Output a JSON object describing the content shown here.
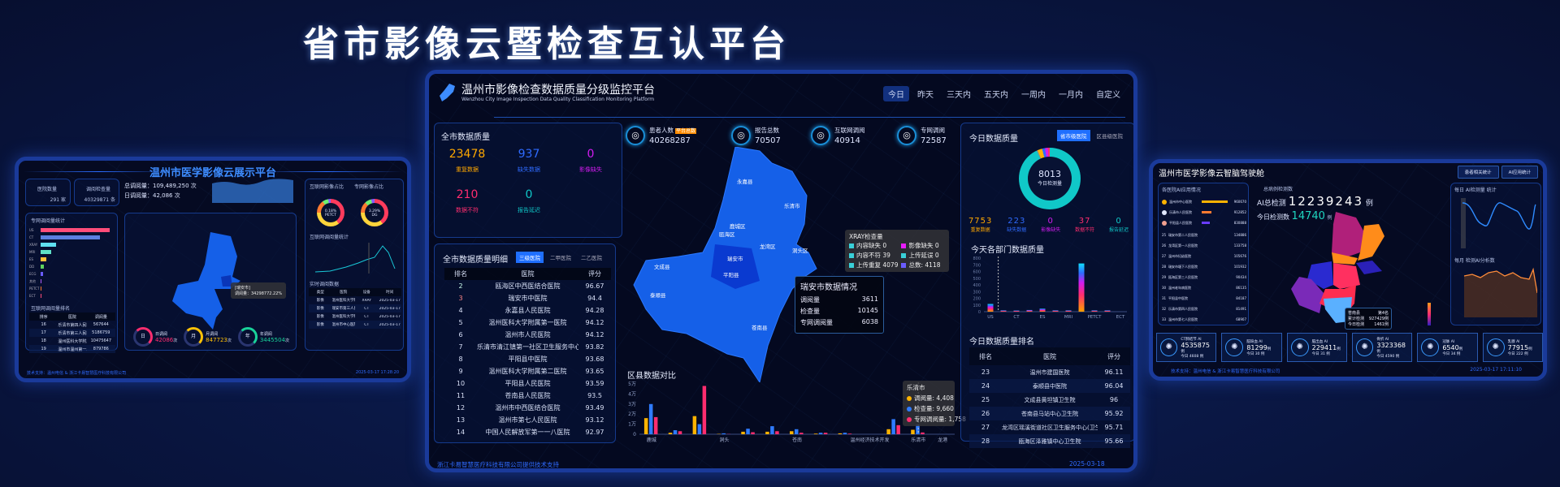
{
  "title": "省市影像云暨检查互认平台",
  "colors": {
    "accent": "#2f7bff",
    "series": [
      "#ffb300",
      "#2f7bff",
      "#ff2d6f"
    ],
    "map": "#1560e8"
  },
  "left_panel": {
    "title": "温州市医学影像云展示平台",
    "hospital_count_label": "医院数量",
    "hospital_count": "291 家",
    "exam_count_label": "调阅检查量",
    "exam_count": "40329871 条",
    "total_views": "总调阅量：109,489,250 次",
    "daily_views": "日调阅量：42,086 次",
    "bar_title": "专网调阅量统计",
    "bar_categories": [
      "US",
      "CT",
      "XRAY",
      "MRI",
      "ES",
      "DD",
      "ECG",
      "其他",
      "PETCT",
      "ECT"
    ],
    "bar_values": [
      100,
      86,
      22,
      15,
      8,
      5,
      4,
      1,
      1,
      1
    ],
    "bar_colors": [
      "#ff4d7a",
      "#5b7fe0",
      "#5fe0f0",
      "#5fe0c8",
      "#ffc13b",
      "#5fd35f",
      "#6a5cff",
      "#b05cff",
      "#ff7a30",
      "#ff4d7a"
    ],
    "rank_title": "互联网调阅量排名",
    "rank_headers": [
      "排序",
      "医院",
      "调阅量"
    ],
    "rank_rows": [
      [
        "16",
        "乐清市第四人民医院",
        "567644"
      ],
      [
        "17",
        "乐清市第三人民医院",
        "5186759"
      ],
      [
        "18",
        "温州医科大学附属第二医院",
        "10475647"
      ],
      [
        "19",
        "温州市温州第一人民医院",
        "879786"
      ]
    ],
    "pie1_title": "互联网影像占比",
    "pie1_value": "0.18%",
    "pie1_label": "PETCT",
    "pie2_title": "专网影像占比",
    "pie2_value": "3.29%",
    "pie2_label": "DG",
    "line_title": "互联网调阅量统计",
    "map_tip": "[瑞安市]",
    "map_tip_value": "调阅量：34298772.22%",
    "realtime_title": "实时调阅数据",
    "realtime_headers": [
      "类型",
      "医院",
      "设备",
      "时间"
    ],
    "realtime_rows": [
      [
        "影像",
        "温州医科大学附属第二医院",
        "XRAY",
        "2025-03-17"
      ],
      [
        "影像",
        "瑞安市第三人民医院",
        "CT",
        "2025-03-17"
      ],
      [
        "影像",
        "温州医科大学附属第一医院",
        "CT",
        "2025-03-17"
      ],
      [
        "影像",
        "温州市中心医院",
        "CT",
        "2025-03-17"
      ]
    ],
    "rings": [
      {
        "center": "日",
        "label": "日调阅",
        "value": "42086",
        "unit": "次",
        "color": "#ff2d6f"
      },
      {
        "center": "月",
        "label": "月调阅",
        "value": "847723",
        "unit": "次",
        "color": "#ffc107"
      },
      {
        "center": "年",
        "label": "年调阅",
        "value": "3445504",
        "unit": "次",
        "color": "#19d29a"
      }
    ],
    "footer": "技术支持：温州电信 & 浙江卡易智慧医疗科技有限公司",
    "datetime": "2025-03-17 17:28:20"
  },
  "center_panel": {
    "title": "温州市影像检查数据质量分级监控平台",
    "subtitle": "Wenzhou City Image Inspection Data Quality Classification Monitoring Platform",
    "tabs": [
      "今日",
      "昨天",
      "三天内",
      "五天内",
      "一周内",
      "一月内",
      "自定义"
    ],
    "active_tab": 0,
    "city_quality": {
      "title": "全市数据质量",
      "items": [
        {
          "value": "23478",
          "label": "重复数据",
          "color": "#ffa800"
        },
        {
          "value": "937",
          "label": "缺失数据",
          "color": "#2f6bff"
        },
        {
          "value": "0",
          "label": "影像缺失",
          "color": "#d21cf0"
        },
        {
          "value": "210",
          "label": "数据不符",
          "color": "#ff2d6f"
        },
        {
          "value": "0",
          "label": "报告延迟",
          "color": "#10c8c8"
        }
      ]
    },
    "stats": [
      {
        "icon": "patients-icon",
        "label": "患者人数",
        "badge": "平台总数",
        "value": "40268287"
      },
      {
        "icon": "report-icon",
        "label": "报告总数",
        "value": "70507"
      },
      {
        "icon": "globe-icon",
        "label": "互联网调阅",
        "value": "40914"
      },
      {
        "icon": "network-icon",
        "label": "专网调阅",
        "value": "72587"
      }
    ],
    "detail": {
      "title": "全市数据质量明细",
      "tabs": [
        "三级医院",
        "二甲医院",
        "二乙医院"
      ],
      "headers": [
        "排名",
        "医院",
        "评分"
      ],
      "rows": [
        [
          "2",
          "瓯海区中西医结合医院",
          "96.67"
        ],
        [
          "3",
          "瑞安市中医院",
          "94.4"
        ],
        [
          "4",
          "永嘉县人民医院",
          "94.28"
        ],
        [
          "5",
          "温州医科大学附属第一医院",
          "94.12"
        ],
        [
          "6",
          "温州市人民医院",
          "94.12"
        ],
        [
          "7",
          "乐清市清江镇第一社区卫生服务中心",
          "93.82"
        ],
        [
          "8",
          "平阳县中医院",
          "93.68"
        ],
        [
          "9",
          "温州医科大学附属第二医院",
          "93.65"
        ],
        [
          "10",
          "平阳县人民医院",
          "93.59"
        ],
        [
          "11",
          "苍南县人民医院",
          "93.5"
        ],
        [
          "12",
          "温州市中西医结合医院",
          "93.49"
        ],
        [
          "13",
          "温州市第七人民医院",
          "93.12"
        ],
        [
          "14",
          "中国人民解放军第一一八医院",
          "92.97"
        ]
      ]
    },
    "map_labels": [
      "永嘉县",
      "乐清市",
      "鹿城区",
      "瓯海区",
      "龙湾区",
      "洞头区",
      "瑞安市",
      "文成县",
      "泰顺县",
      "平阳县",
      "苍南县"
    ],
    "map_tooltip": {
      "title": "瑞安市数据情况",
      "rows": [
        [
          "调阅量",
          "3611"
        ],
        [
          "检查量",
          "10145"
        ],
        [
          "专网调阅量",
          "6038"
        ]
      ]
    },
    "xray_tooltip": {
      "title": "XRAY检查量",
      "items": [
        [
          "内容缺失",
          "0",
          "#39d0d8"
        ],
        [
          "影像缺失",
          "0",
          "#e81cff"
        ],
        [
          "内容不符",
          "39",
          "#39d0d8"
        ],
        [
          "上传延误",
          "0",
          "#39d0d8"
        ],
        [
          "上传重复",
          "4079",
          "#39d0d8"
        ],
        [
          "总数:",
          "4118",
          "#6a5cff"
        ]
      ]
    },
    "footer": "浙江卡易智慧医疗科技有限公司提供技术支持",
    "datetime": "2025-03-18 17:29:08"
  },
  "today_quality": {
    "title": "今日数据质量",
    "tabs": [
      "省市级医院",
      "区县级医院"
    ],
    "total": "8013",
    "total_label": "今日检测量",
    "items": [
      {
        "value": "7753",
        "label": "重复数据",
        "color": "#ffa800"
      },
      {
        "value": "223",
        "label": "缺失数据",
        "color": "#2f6bff"
      },
      {
        "value": "0",
        "label": "影像缺失",
        "color": "#d21cf0"
      },
      {
        "value": "37",
        "label": "数据不符",
        "color": "#ff2d6f"
      },
      {
        "value": "0",
        "label": "报告延迟",
        "color": "#10c8c8"
      }
    ],
    "ranking_title": "今日数据质量排名",
    "ranking_headers": [
      "排名",
      "医院",
      "评分"
    ],
    "ranking_rows": [
      [
        "23",
        "温州市建国医院",
        "96.11"
      ],
      [
        "24",
        "泰顺县中医院",
        "96.04"
      ],
      [
        "25",
        "文成县黄坦镇卫生院",
        "96"
      ],
      [
        "26",
        "苍南县马站中心卫生院",
        "95.92"
      ],
      [
        "27",
        "龙湾区瑶溪街道社区卫生服务中心(卫生院)",
        "95.71"
      ],
      [
        "28",
        "瓯海区泽雅镇中心卫生院",
        "95.66"
      ]
    ]
  },
  "chart_data": [
    {
      "type": "bar",
      "title": "今天各部门数据质量",
      "categories": [
        "US",
        "",
        "CT",
        "",
        "ES",
        "",
        "MRI",
        "",
        "PETCT",
        "",
        "ECT"
      ],
      "values": [
        115,
        20,
        18,
        25,
        45,
        20,
        20,
        720,
        20,
        20,
        0
      ],
      "ylim": [
        0,
        800
      ],
      "yticks": [
        "0",
        "100",
        "200",
        "300",
        "400",
        "500",
        "600",
        "700",
        "800"
      ]
    },
    {
      "type": "bar",
      "title": "区县数据对比",
      "categories": [
        "鹿城",
        "",
        "",
        "洞头",
        "",
        "",
        "苍南",
        "",
        "",
        "温州经济技术开发",
        "",
        "乐清市",
        "龙港"
      ],
      "series": [
        {
          "name": "调阅量",
          "values": [
            16000,
            1500,
            18000,
            300,
            2500,
            2500,
            3000,
            600,
            900,
            0,
            5000,
            4408,
            0
          ]
        },
        {
          "name": "检查量",
          "values": [
            30000,
            4000,
            10000,
            900,
            5500,
            8000,
            5000,
            1500,
            1500,
            0,
            15000,
            9660,
            0
          ]
        },
        {
          "name": "专网调阅量",
          "values": [
            17000,
            3000,
            48000,
            200,
            2000,
            3000,
            1500,
            1500,
            600,
            0,
            9000,
            1758,
            0
          ]
        }
      ],
      "ylim": [
        0,
        50000
      ],
      "yticks": [
        "0",
        "1万",
        "2万",
        "3万",
        "4万",
        "5万"
      ],
      "tooltip": {
        "title": "乐清市",
        "rows": [
          "调阅量: 4,408",
          "检查量: 9,660",
          "专网调阅量: 1,758"
        ]
      }
    }
  ],
  "right_panel": {
    "title": "温州市医学影像云智脑驾驶舱",
    "buttons": [
      "患者相关统计",
      "AI应用统计"
    ],
    "ai_title": "各医院AI应用情况",
    "ai_top": [
      [
        "温州市中心医院",
        "960670",
        "#ffb300"
      ],
      [
        "乐清市人民医院",
        "912852",
        "#ff7a30"
      ],
      [
        "平阳县人民医院",
        "830888",
        "#6a3cff"
      ]
    ],
    "ai_rows": [
      [
        "25",
        "瑞安市第二人民医院",
        "134886"
      ],
      [
        "26",
        "龙湾区第一人民医院",
        "133758"
      ],
      [
        "27",
        "温州市妇幼医院",
        "105676"
      ],
      [
        "28",
        "瑞安市塘下人民医院",
        "101932"
      ],
      [
        "29",
        "瓯海区第三人民医院",
        "90434"
      ],
      [
        "30",
        "温州老年病医院",
        "86135"
      ],
      [
        "31",
        "平阳县中医院",
        "84187"
      ],
      [
        "32",
        "乐清市第四人民医院",
        "81491"
      ],
      [
        "33",
        "温州市第七人民医院",
        "68907"
      ]
    ],
    "total_case_label": "总病例检测数",
    "ai_total_label": "AI总检测",
    "ai_total": "12239243",
    "ai_total_unit": "例",
    "today_label": "今日检测数",
    "today_value": "14740",
    "today_unit": "例",
    "map_tip": {
      "name": "苍南县",
      "rank": "第4名",
      "rows": [
        [
          "累计检测",
          "927429例"
        ],
        [
          "今日检测",
          "1461例"
        ]
      ]
    },
    "daily_chart_title": "每日 AI检测量 统计",
    "monthly_chart_title": "每月 检测AI分析数",
    "cards": [
      {
        "name": "CT肺结节 AI",
        "value": "4535875",
        "today": "今日 4608 例",
        "icon": "lungs-icon"
      },
      {
        "name": "脑缺血 AI",
        "value": "81299",
        "today": "今日 30 例",
        "icon": "brain-icon"
      },
      {
        "name": "脑出血 AI",
        "value": "229411",
        "today": "今日 31 例",
        "icon": "brain-icon"
      },
      {
        "name": "骨折 AI",
        "value": "3323368",
        "today": "今日 4590 例",
        "icon": "ribs-icon"
      },
      {
        "name": "冠脉 AI",
        "value": "6540",
        "today": "今日 34 例",
        "icon": "heart-icon"
      },
      {
        "name": "乳腺 AI",
        "value": "77915",
        "today": "今日 222 例",
        "icon": "monitor-icon"
      }
    ],
    "unit": "例",
    "footer": "技术支持：温州电信 & 浙江卡易智慧医疗科技有限公司",
    "datetime": "2025-03-17 17:11:10"
  }
}
